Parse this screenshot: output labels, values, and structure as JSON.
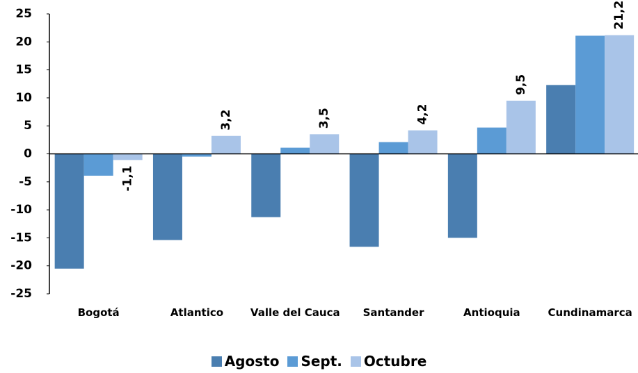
{
  "chart_data": {
    "type": "bar",
    "categories": [
      "Bogotá",
      "Atlantico",
      "Valle del Cauca",
      "Santander",
      "Antioquia",
      "Cundinamarca"
    ],
    "series": [
      {
        "name": "Agosto",
        "color": "#4a7eb0",
        "values": [
          -20.5,
          -15.4,
          -11.3,
          -16.6,
          -15.0,
          12.3
        ]
      },
      {
        "name": "Sept.",
        "color": "#5b9bd5",
        "values": [
          -3.9,
          -0.5,
          1.1,
          2.1,
          4.7,
          21.1
        ]
      },
      {
        "name": "Octubre",
        "color": "#a9c4e8",
        "values": [
          -1.1,
          3.2,
          3.5,
          4.2,
          9.5,
          21.2
        ],
        "value_labels": [
          "-1,1",
          "3,2",
          "3,5",
          "4,2",
          "9,5",
          "21,2"
        ]
      }
    ],
    "ylim": [
      -25,
      25
    ],
    "yticks": [
      -25,
      -20,
      -15,
      -10,
      -5,
      0,
      5,
      10,
      15,
      20,
      25
    ],
    "legend": "bottom"
  }
}
